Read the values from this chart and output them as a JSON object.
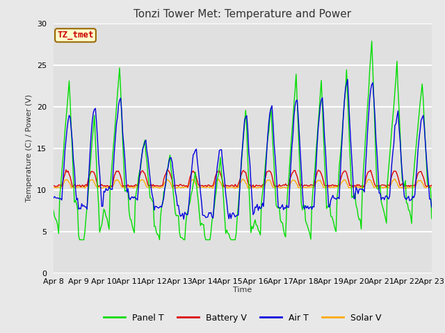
{
  "title": "Tonzi Tower Met: Temperature and Power",
  "ylabel": "Temperature (C) / Power (V)",
  "xlabel": "Time",
  "xlim_start": 0,
  "xlim_end": 360,
  "ylim": [
    0,
    30
  ],
  "yticks": [
    0,
    5,
    10,
    15,
    20,
    25,
    30
  ],
  "xtick_labels": [
    "Apr 8",
    "Apr 9",
    "Apr 10",
    "Apr 11",
    "Apr 12",
    "Apr 13",
    "Apr 14",
    "Apr 15",
    "Apr 16",
    "Apr 17",
    "Apr 18",
    "Apr 19",
    "Apr 20",
    "Apr 21",
    "Apr 22",
    "Apr 23"
  ],
  "xtick_positions": [
    0,
    24,
    48,
    72,
    96,
    120,
    144,
    168,
    192,
    216,
    240,
    264,
    288,
    312,
    336,
    360
  ],
  "bg_color": "#e8e8e8",
  "plot_bg_color": "#e0e0e0",
  "grid_color": "#ffffff",
  "panel_t_color": "#00dd00",
  "battery_v_color": "#dd0000",
  "air_t_color": "#0000dd",
  "solar_v_color": "#ffaa00",
  "legend_box_color": "#ffffcc",
  "legend_box_edge": "#996600",
  "label_color": "#cc0000",
  "label_text": "TZ_tmet",
  "label_fontsize": 9,
  "title_fontsize": 11,
  "linewidth": 1.0,
  "tick_fontsize": 8
}
